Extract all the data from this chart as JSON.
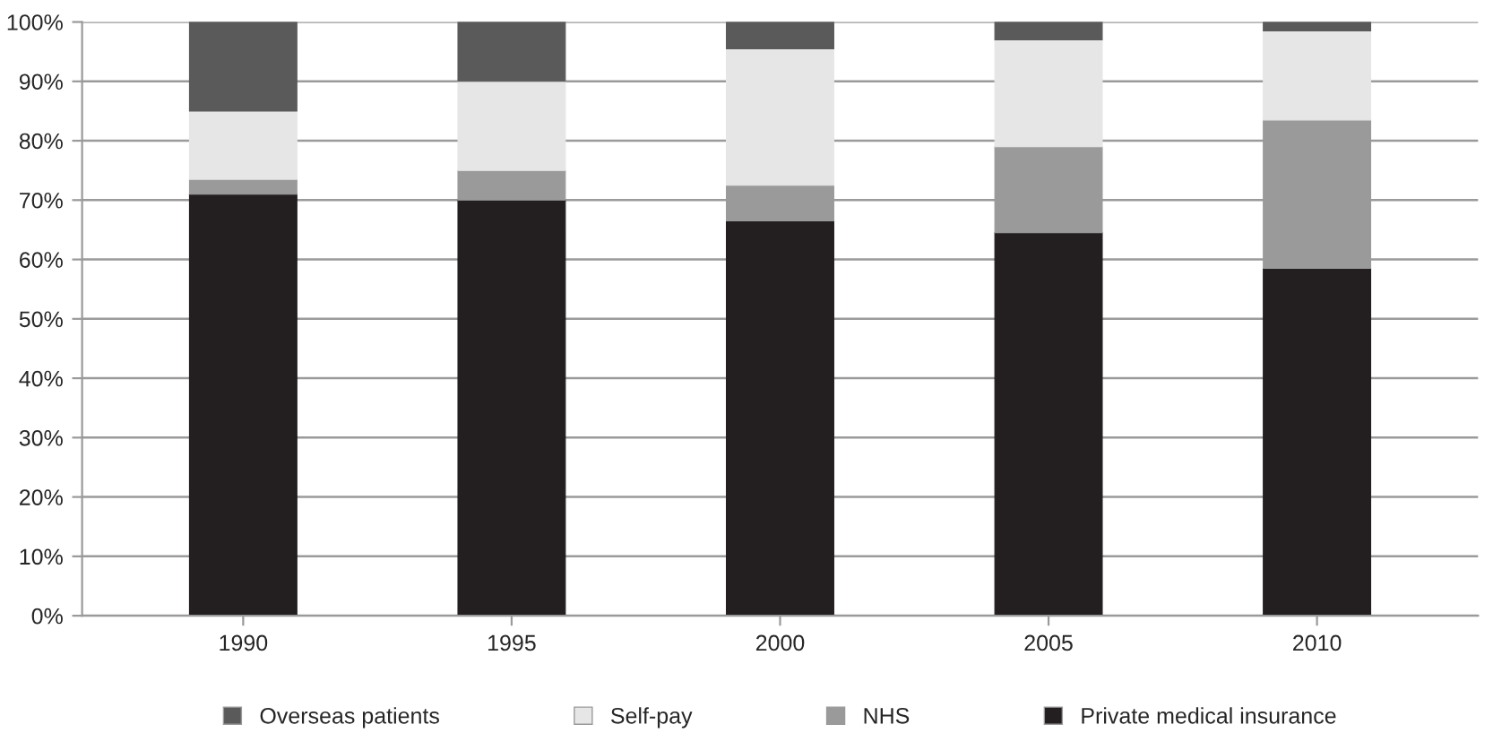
{
  "chart_data": {
    "type": "bar",
    "stacked": true,
    "categories": [
      "1990",
      "1995",
      "2000",
      "2005",
      "2010"
    ],
    "series": [
      {
        "name": "Private medical insurance",
        "color": "#231f20",
        "values": [
          71,
          70,
          66.5,
          64.5,
          58.5
        ]
      },
      {
        "name": "NHS",
        "color": "#9a9a9a",
        "values": [
          2.5,
          5,
          6,
          14.5,
          25
        ]
      },
      {
        "name": "Self-pay",
        "color": "#e6e6e6",
        "values": [
          11.5,
          15,
          23,
          18,
          15
        ]
      },
      {
        "name": "Overseas patients",
        "color": "#5a5a5a",
        "values": [
          15,
          10,
          4.5,
          3,
          1.5
        ]
      }
    ],
    "ylim": [
      0,
      100
    ],
    "yticks": [
      {
        "value": 0,
        "label": "0%"
      },
      {
        "value": 10,
        "label": "10%"
      },
      {
        "value": 20,
        "label": "20%"
      },
      {
        "value": 30,
        "label": "30%"
      },
      {
        "value": 40,
        "label": "40%"
      },
      {
        "value": 50,
        "label": "50%"
      },
      {
        "value": 60,
        "label": "60%"
      },
      {
        "value": 70,
        "label": "70%"
      },
      {
        "value": 80,
        "label": "80%"
      },
      {
        "value": 90,
        "label": "90%"
      },
      {
        "value": 100,
        "label": "100%"
      }
    ],
    "grid": "y",
    "legend": "bottom"
  }
}
